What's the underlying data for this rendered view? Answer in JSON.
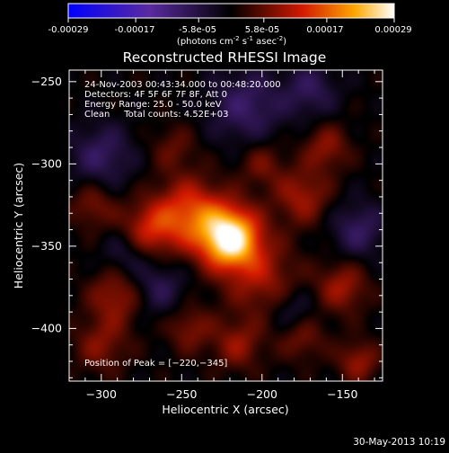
{
  "chart_data": {
    "type": "heatmap",
    "title": "Reconstructed RHESSI Image",
    "colorbar": {
      "ticks": [
        "-0.00029",
        "-0.00017",
        "-5.8e-05",
        "5.8e-05",
        "0.00017",
        "0.00029"
      ],
      "tick_values": [
        -0.00029,
        -0.00017,
        -5.8e-05,
        5.8e-05,
        0.00017,
        0.00029
      ],
      "range": [
        -0.00029,
        0.00029
      ],
      "unit_parts": {
        "a": "(photons cm",
        "b": "-2",
        "c": " s",
        "d": "-1",
        "e": " asec",
        "f": "-2",
        "g": ")"
      },
      "colors": {
        "low": "#0000ff",
        "mid_low": "#5a2aa0",
        "zero": "#000000",
        "mid_high": "#d41a00",
        "high": "#ffa800",
        "top": "#ffffff"
      }
    },
    "xlabel": "Heliocentric X (arcsec)",
    "ylabel": "Heliocentric Y (arcsec)",
    "xlim": [
      -320,
      -125
    ],
    "ylim": [
      -432,
      -243
    ],
    "x_ticks": [
      -300,
      -250,
      -200,
      -150
    ],
    "y_ticks": [
      -250,
      -300,
      -350,
      -400
    ],
    "x_tick_labels": [
      "−300",
      "−250",
      "−200",
      "−150"
    ],
    "y_tick_labels": [
      "−250",
      "−300",
      "−350",
      "−400"
    ],
    "annotations": [
      "24-Nov-2003 00:43:34.000 to 00:48:20.000",
      "Detectors: 4F 5F 6F 7F 8F, Att 0",
      "Energy Range: 25.0 - 50.0 keV",
      "Clean     Total counts: 4.52E+03"
    ],
    "peak_label": "Position of Peak = [−220,−345]",
    "peak": {
      "x": -220,
      "y": -345
    },
    "sources": [
      {
        "x": -220,
        "y": -345,
        "amp": 1.0,
        "w": 13
      },
      {
        "x": -245,
        "y": -330,
        "amp": 0.5,
        "w": 15
      },
      {
        "x": -200,
        "y": -370,
        "amp": 0.3,
        "w": 16
      },
      {
        "x": -270,
        "y": -340,
        "amp": 0.38,
        "w": 12
      },
      {
        "x": -290,
        "y": -380,
        "amp": 0.32,
        "w": 12
      },
      {
        "x": -300,
        "y": -410,
        "amp": 0.25,
        "w": 12
      },
      {
        "x": -175,
        "y": -320,
        "amp": 0.32,
        "w": 12
      },
      {
        "x": -160,
        "y": -290,
        "amp": 0.28,
        "w": 10
      },
      {
        "x": -150,
        "y": -375,
        "amp": 0.32,
        "w": 11
      },
      {
        "x": -140,
        "y": -420,
        "amp": 0.3,
        "w": 9
      },
      {
        "x": -215,
        "y": -410,
        "amp": 0.28,
        "w": 11
      },
      {
        "x": -245,
        "y": -400,
        "amp": 0.25,
        "w": 10
      },
      {
        "x": -175,
        "y": -405,
        "amp": 0.25,
        "w": 10
      },
      {
        "x": -305,
        "y": -325,
        "amp": 0.25,
        "w": 10
      },
      {
        "x": -200,
        "y": -300,
        "amp": 0.22,
        "w": 10
      },
      {
        "x": -255,
        "y": -290,
        "amp": 0.18,
        "w": 10
      },
      {
        "x": -265,
        "y": -375,
        "amp": -0.25,
        "w": 12
      },
      {
        "x": -300,
        "y": -295,
        "amp": -0.28,
        "w": 14
      },
      {
        "x": -210,
        "y": -265,
        "amp": -0.3,
        "w": 16
      },
      {
        "x": -170,
        "y": -255,
        "amp": -0.25,
        "w": 12
      },
      {
        "x": -140,
        "y": -340,
        "amp": -0.28,
        "w": 12
      },
      {
        "x": -180,
        "y": -390,
        "amp": -0.22,
        "w": 10
      },
      {
        "x": -285,
        "y": -355,
        "amp": -0.2,
        "w": 10
      }
    ]
  },
  "footer": {
    "date": "30-May-2013 10:19"
  }
}
